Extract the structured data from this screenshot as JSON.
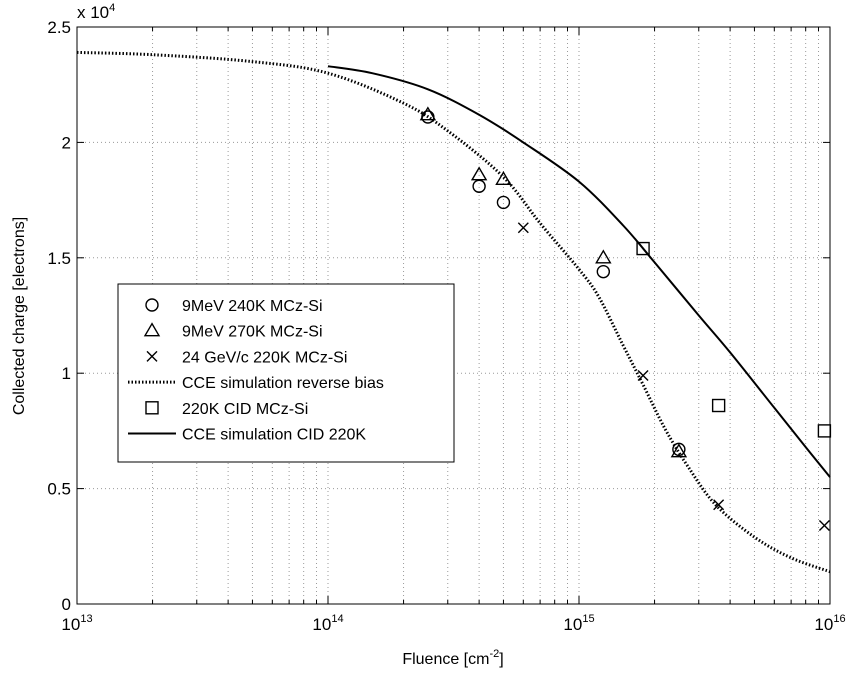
{
  "chart_data": {
    "type": "scatter",
    "xscale": "log",
    "xlim": [
      10000000000000.0,
      1e+16
    ],
    "ylim": [
      0,
      25000
    ],
    "grid": true,
    "legend_position": "center-left",
    "xlabel": "Fluence [cm",
    "xlabel_superscript": "-2",
    "xlabel_suffix": "]",
    "ylabel": "Collected charge [electrons]",
    "y_multiplier_label": "x 10",
    "y_multiplier_exponent": "4",
    "x_tick_labels": [
      {
        "value": 10000000000000.0,
        "base": "10",
        "exp": "13"
      },
      {
        "value": 100000000000000.0,
        "base": "10",
        "exp": "14"
      },
      {
        "value": 1000000000000000.0,
        "base": "10",
        "exp": "15"
      },
      {
        "value": 1e+16,
        "base": "10",
        "exp": "16"
      }
    ],
    "y_ticks": [
      0,
      5000,
      10000,
      15000,
      20000,
      25000
    ],
    "y_tick_labels": [
      "0",
      "0.5",
      "1",
      "1.5",
      "2",
      "2.5"
    ],
    "series": [
      {
        "name": "9MeV 240K MCz-Si",
        "marker": "circle",
        "color": "#000000",
        "points": [
          [
            250000000000000.0,
            21100
          ],
          [
            400000000000000.0,
            18100
          ],
          [
            500000000000000.0,
            17400
          ],
          [
            1250000000000000.0,
            14400
          ],
          [
            2500000000000000.0,
            6700
          ]
        ]
      },
      {
        "name": "9MeV 270K MCz-Si",
        "marker": "triangle",
        "color": "#000000",
        "points": [
          [
            250000000000000.0,
            21200
          ],
          [
            400000000000000.0,
            18600
          ],
          [
            500000000000000.0,
            18400
          ],
          [
            1250000000000000.0,
            15000
          ],
          [
            2500000000000000.0,
            6600
          ]
        ]
      },
      {
        "name": "24 GeV/c 220K MCz-Si",
        "marker": "x",
        "color": "#000000",
        "points": [
          [
            600000000000000.0,
            16300
          ],
          [
            1800000000000000.0,
            9900
          ],
          [
            3600000000000000.0,
            4300
          ],
          [
            9500000000000000.0,
            3400
          ]
        ]
      },
      {
        "name": "CCE simulation reverse bias",
        "line_style": "dotted",
        "color": "#000000",
        "points": [
          [
            10000000000000.0,
            23900
          ],
          [
            20000000000000.0,
            23800
          ],
          [
            50000000000000.0,
            23500
          ],
          [
            100000000000000.0,
            23000
          ],
          [
            200000000000000.0,
            21700
          ],
          [
            300000000000000.0,
            20500
          ],
          [
            500000000000000.0,
            18500
          ],
          [
            700000000000000.0,
            16500
          ],
          [
            1000000000000000.0,
            14500
          ],
          [
            1200000000000000.0,
            13300
          ],
          [
            1500000000000000.0,
            11200
          ],
          [
            1800000000000000.0,
            9500
          ],
          [
            2200000000000000.0,
            7600
          ],
          [
            2700000000000000.0,
            6000
          ],
          [
            3500000000000000.0,
            4300
          ],
          [
            5000000000000000.0,
            2900
          ],
          [
            7000000000000000.0,
            2000
          ],
          [
            1e+16,
            1400
          ]
        ]
      },
      {
        "name": "220K CID MCz-Si",
        "marker": "square",
        "color": "#000000",
        "points": [
          [
            1800000000000000.0,
            15400
          ],
          [
            3600000000000000.0,
            8600
          ],
          [
            9500000000000000.0,
            7500
          ]
        ]
      },
      {
        "name": "CCE simulation CID 220K",
        "line_style": "solid",
        "color": "#000000",
        "points": [
          [
            100000000000000.0,
            23300
          ],
          [
            150000000000000.0,
            23000
          ],
          [
            250000000000000.0,
            22300
          ],
          [
            400000000000000.0,
            21200
          ],
          [
            600000000000000.0,
            20000
          ],
          [
            1000000000000000.0,
            18300
          ],
          [
            1500000000000000.0,
            16400
          ],
          [
            2000000000000000.0,
            14800
          ],
          [
            3000000000000000.0,
            12500
          ],
          [
            4000000000000000.0,
            10900
          ],
          [
            6000000000000000.0,
            8500
          ],
          [
            8000000000000000.0,
            6800
          ],
          [
            1e+16,
            5500
          ]
        ]
      }
    ]
  }
}
